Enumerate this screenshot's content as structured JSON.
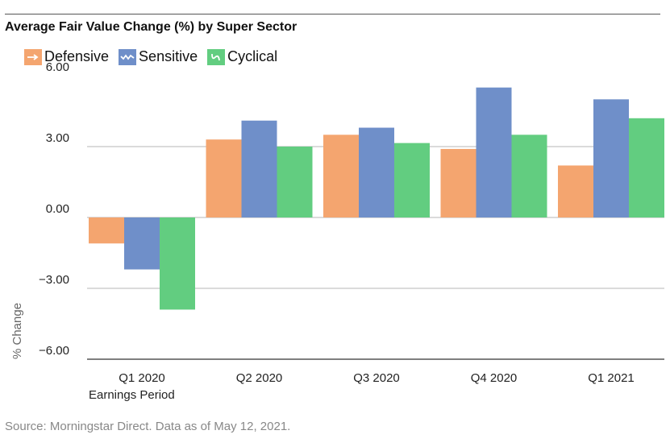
{
  "chart_data": {
    "type": "bar",
    "title": "Average Fair Value Change (%) by Super Sector",
    "xlabel": "Earnings Period",
    "ylabel": "% Change",
    "categories": [
      "Q1 2020",
      "Q2 2020",
      "Q3 2020",
      "Q4 2020",
      "Q1 2021"
    ],
    "series": [
      {
        "name": "Defensive",
        "color": "#f4a56f",
        "values": [
          -1.1,
          3.3,
          3.5,
          2.9,
          2.2
        ]
      },
      {
        "name": "Sensitive",
        "color": "#6f8fc9",
        "values": [
          -2.2,
          4.1,
          3.8,
          5.5,
          5.0
        ]
      },
      {
        "name": "Cyclical",
        "color": "#62cd80",
        "values": [
          -3.9,
          3.0,
          3.15,
          3.5,
          4.2
        ]
      }
    ],
    "ylim": [
      -6.0,
      6.0
    ],
    "yticks": [
      "6.00",
      "3.00",
      "0.00",
      "−3.00",
      "−6.00"
    ],
    "legend_position": "top-left",
    "grid": true
  },
  "source": "Source: Morningstar Direct. Data as of May 12, 2021."
}
